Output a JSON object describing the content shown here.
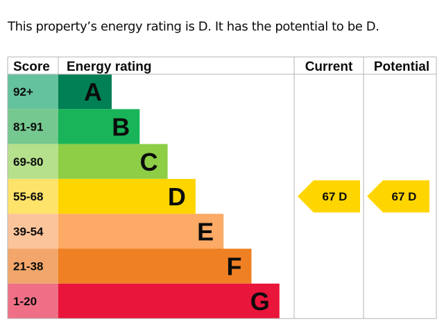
{
  "summary": "This property’s energy rating is D. It has the potential to be D.",
  "chart_data": {
    "type": "bar",
    "headers": {
      "score": "Score",
      "rating": "Energy rating",
      "current": "Current",
      "potential": "Potential"
    },
    "bands": [
      {
        "letter": "A",
        "score": "92+",
        "color": "#008054",
        "score_bg": "#64c29d"
      },
      {
        "letter": "B",
        "score": "81-91",
        "color": "#19b459",
        "score_bg": "#75c88f"
      },
      {
        "letter": "C",
        "score": "69-80",
        "color": "#8dce46",
        "score_bg": "#b6e08c"
      },
      {
        "letter": "D",
        "score": "55-68",
        "color": "#ffd500",
        "score_bg": "#fde36a"
      },
      {
        "letter": "E",
        "score": "39-54",
        "color": "#fcaa65",
        "score_bg": "#fcc49a"
      },
      {
        "letter": "F",
        "score": "21-38",
        "color": "#ef8023",
        "score_bg": "#f3a66b"
      },
      {
        "letter": "G",
        "score": "1-20",
        "color": "#e9153b",
        "score_bg": "#ef7086"
      }
    ],
    "current": {
      "value": 67,
      "band": "D",
      "label": "67 D"
    },
    "potential": {
      "value": 67,
      "band": "D",
      "label": "67 D"
    }
  }
}
